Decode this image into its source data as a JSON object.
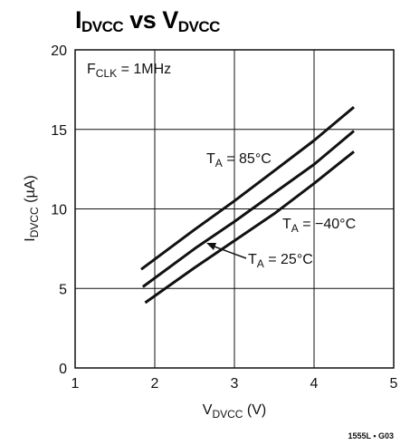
{
  "chart_data": {
    "type": "line",
    "title": {
      "main": "I",
      "main_sub": "DVCC",
      "mid": " vs V",
      "tail_sub": "DVCC"
    },
    "xlabel": {
      "pre": "V",
      "sub": "DVCC",
      "post": " (V)"
    },
    "ylabel": {
      "pre": "I",
      "sub": "DVCC",
      "post": " (µA)"
    },
    "xlim": [
      1,
      5
    ],
    "ylim": [
      0,
      20
    ],
    "xticks": [
      "1",
      "2",
      "3",
      "4",
      "5"
    ],
    "yticks": [
      "0",
      "5",
      "10",
      "15",
      "20"
    ],
    "grid": true,
    "condition": {
      "pre": "F",
      "sub": "CLK",
      "post": " = 1MHz"
    },
    "series": [
      {
        "name": "T_A = 85°C",
        "x": [
          1.83,
          2.5,
          3.0,
          3.5,
          4.0,
          4.5
        ],
        "y": [
          6.2,
          8.7,
          10.5,
          12.4,
          14.3,
          16.4
        ]
      },
      {
        "name": "T_A = 25°C",
        "x": [
          1.85,
          2.5,
          3.0,
          3.5,
          4.0,
          4.5
        ],
        "y": [
          5.1,
          7.5,
          9.2,
          11.0,
          12.8,
          14.9
        ]
      },
      {
        "name": "T_A = −40°C",
        "x": [
          1.88,
          2.5,
          3.0,
          3.5,
          4.0,
          4.5
        ],
        "y": [
          4.1,
          6.3,
          8.0,
          9.7,
          11.6,
          13.6
        ]
      }
    ],
    "labels": [
      {
        "pre": "T",
        "sub": "A",
        "post": " = 85°C"
      },
      {
        "pre": "T",
        "sub": "A",
        "post": " = −40°C"
      },
      {
        "pre": "T",
        "sub": "A",
        "post": " = 25°C"
      }
    ],
    "figure_code": "1555L • G03"
  }
}
